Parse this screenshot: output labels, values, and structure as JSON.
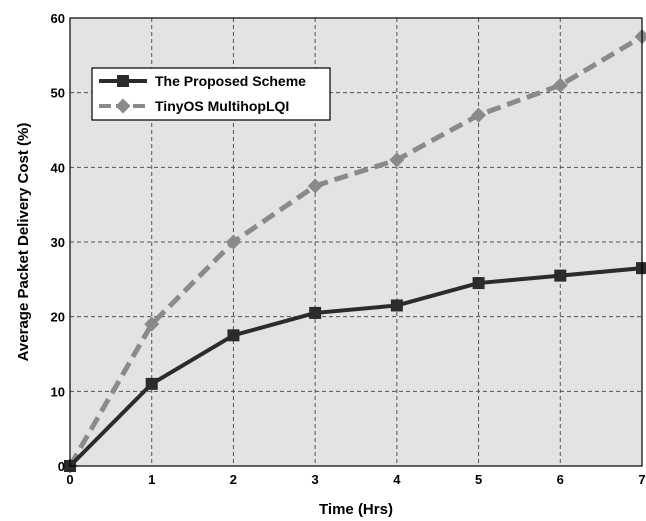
{
  "chart_data": {
    "type": "line",
    "xlabel": "Time (Hrs)",
    "ylabel": "Average Packet Delivery Cost (%)",
    "xlim": [
      0,
      7
    ],
    "ylim": [
      0,
      60
    ],
    "x_ticks": [
      "0",
      "1",
      "2",
      "3",
      "4",
      "5",
      "6",
      "7"
    ],
    "y_ticks": [
      "0",
      "10",
      "20",
      "30",
      "40",
      "50",
      "60"
    ],
    "grid": true,
    "legend_position": "top-left",
    "x": [
      0,
      1,
      2,
      3,
      4,
      5,
      6,
      7
    ],
    "series": [
      {
        "name": "The Proposed Scheme",
        "values": [
          0,
          11,
          17.5,
          20.5,
          21.5,
          24.5,
          25.5,
          26.5
        ],
        "color": "#2b2b2b",
        "marker": "square",
        "line_style": "solid"
      },
      {
        "name": "TinyOS MultihopLQI",
        "values": [
          0,
          19,
          30,
          37.5,
          41,
          47,
          51,
          57.5
        ],
        "color": "#8a8a8a",
        "marker": "diamond",
        "line_style": "dashed"
      }
    ]
  },
  "colors": {
    "plot_background": "#e3e3e3",
    "grid": "#555555"
  }
}
